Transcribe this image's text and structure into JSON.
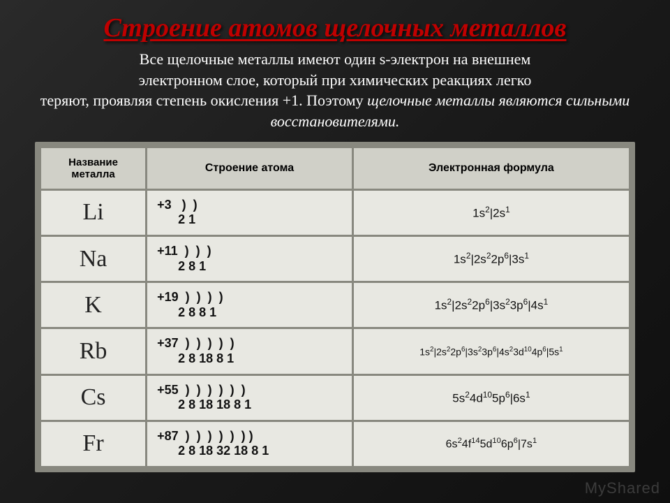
{
  "title": {
    "text": "Строение атомов щелочных металлов",
    "fontsize": 38,
    "color": "#c00000"
  },
  "description": {
    "line1": "Все щелочные металлы имеют один s-электрон на внешнем",
    "line2": "электронном слое, который при химических реакциях легко",
    "line3": "теряют, проявляя степень окисления +1. Поэтому ",
    "italic": "щелочные металлы являются сильными восстановителями.",
    "fontsize": 22
  },
  "table": {
    "headers": {
      "name": "Название металла",
      "struct": "Строение атома",
      "formula": "Электронная формула",
      "fontsize_name": 15,
      "fontsize_rest": 16
    },
    "rows": [
      {
        "elem": "Li",
        "elem_fs": 34,
        "struct_l1": "+3   )  )",
        "struct_l2": "      2 1",
        "struct_fs": 18,
        "formula": "1s<sup>2</sup>|2s<sup>1</sup>",
        "formula_fs": 17
      },
      {
        "elem": "Na",
        "elem_fs": 34,
        "struct_l1": "+11  )  )  )",
        "struct_l2": "      2 8 1",
        "struct_fs": 18,
        "formula": "1s<sup>2</sup>|2s<sup>2</sup>2p<sup>6</sup>|3s<sup>1</sup>",
        "formula_fs": 17
      },
      {
        "elem": "K",
        "elem_fs": 34,
        "struct_l1": "+19  )  )  )  )",
        "struct_l2": "      2 8 8 1",
        "struct_fs": 18,
        "formula": "1s<sup>2</sup>|2s<sup>2</sup>2p<sup>6</sup>|3s<sup>2</sup>3p<sup>6</sup>|4s<sup>1</sup>",
        "formula_fs": 17
      },
      {
        "elem": "Rb",
        "elem_fs": 34,
        "struct_l1": "+37  )  )  )  )  )",
        "struct_l2": "      2 8 18 8 1",
        "struct_fs": 18,
        "formula": "1s<sup>2</sup>|2s<sup>2</sup>2p<sup>6</sup>|3s<sup>2</sup>3p<sup>6</sup>|4s<sup>2</sup>3d<sup>10</sup>4p<sup>6</sup>|5s<sup>1</sup>",
        "formula_fs": 14
      },
      {
        "elem": "Cs",
        "elem_fs": 34,
        "struct_l1": "+55  )  )  )  )  )  )",
        "struct_l2": "      2 8 18 18 8 1",
        "struct_fs": 18,
        "formula": "5s<sup>2</sup>4d<sup>10</sup>5p<sup>6</sup>|6s<sup>1</sup>",
        "formula_fs": 17
      },
      {
        "elem": "Fr",
        "elem_fs": 34,
        "struct_l1": "+87  )  )  )  )  )  ) )",
        "struct_l2": "      2 8 18 32 18 8 1",
        "struct_fs": 18,
        "formula": "6s<sup>2</sup>4f<sup>14</sup>5d<sup>10</sup>6p<sup>6</sup>|7s<sup>1</sup>",
        "formula_fs": 16
      }
    ]
  },
  "watermark": "MyShared"
}
